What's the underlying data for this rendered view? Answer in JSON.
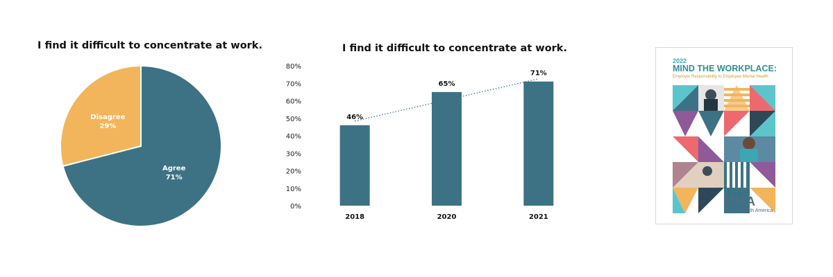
{
  "chart_data": [
    {
      "type": "pie",
      "title": "I find it difficult to concentrate at work.",
      "slices": [
        {
          "label": "Agree",
          "value": 71,
          "value_label": "71%",
          "color": "#3d7285"
        },
        {
          "label": "Disagree",
          "value": 29,
          "value_label": "29%",
          "color": "#f2b55c"
        }
      ]
    },
    {
      "type": "bar",
      "title": "I find it difficult to concentrate at work.",
      "categories": [
        "2018",
        "2020",
        "2021"
      ],
      "values": [
        46,
        65,
        71
      ],
      "value_labels": [
        "46%",
        "65%",
        "71%"
      ],
      "ylim": [
        0,
        80
      ],
      "yticks": [
        "0%",
        "10%",
        "20%",
        "30%",
        "40%",
        "50%",
        "60%",
        "70%",
        "80%"
      ],
      "trendline": "dotted",
      "grid": false,
      "bar_color": "#3d7285"
    }
  ],
  "report_cover": {
    "year": "2022",
    "title": "MIND THE WORKPLACE:",
    "subtitle": "Employer Responsibility to Employee Mental Health",
    "logo": "MHA",
    "organization": "Mental Health America"
  }
}
